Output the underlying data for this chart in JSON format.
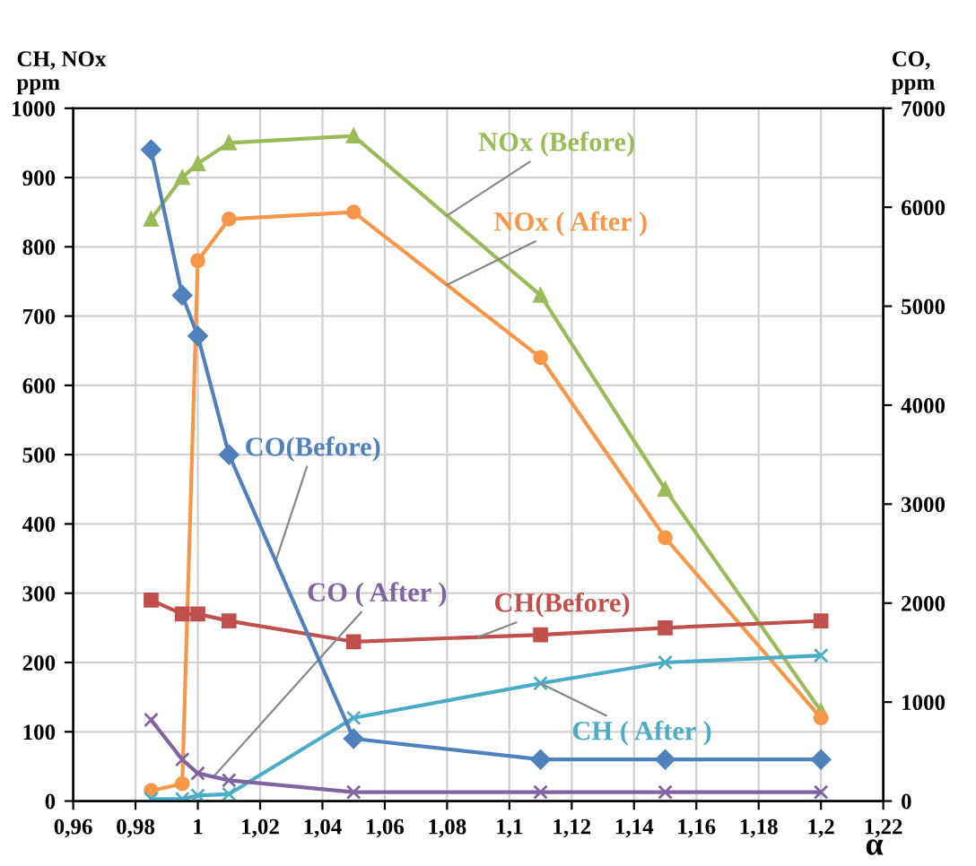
{
  "chart_data": {
    "type": "line",
    "ylabel": "CH, NOx\nppm",
    "y2label": "CO,\nppm",
    "xlabel": "α",
    "x": [
      0.985,
      0.995,
      1.0,
      1.01,
      1.05,
      1.11,
      1.15,
      1.2
    ],
    "series": [
      {
        "name": "NOx (Before)",
        "color": "#9bbb59",
        "marker": "triangle",
        "values": [
          840,
          900,
          920,
          950,
          960,
          730,
          450,
          130
        ]
      },
      {
        "name": "NOx ( After )",
        "color": "#f79646",
        "marker": "circle",
        "values": [
          15,
          25,
          780,
          840,
          850,
          640,
          380,
          120
        ]
      },
      {
        "name": "CO(Before)",
        "color": "#4f81bd",
        "marker": "diamond",
        "axis": "y2",
        "values": [
          6580,
          5110,
          4700,
          3500,
          630,
          420,
          420,
          420
        ]
      },
      {
        "name": "CO ( After )",
        "color": "#8064a2",
        "marker": "cross",
        "axis": "y2",
        "values": [
          820,
          420,
          280,
          210,
          90,
          90,
          90,
          90
        ]
      },
      {
        "name": "CH(Before)",
        "color": "#c0504d",
        "marker": "square",
        "values": [
          290,
          270,
          270,
          260,
          230,
          240,
          250,
          260
        ]
      },
      {
        "name": "CH ( After )",
        "color": "#4bacc6",
        "marker": "cross",
        "values": [
          3,
          3,
          8,
          10,
          120,
          170,
          200,
          210
        ]
      }
    ],
    "xlim": [
      0.96,
      1.22
    ],
    "xticks": [
      {
        "value": 0.96,
        "label": "0,96"
      },
      {
        "value": 0.98,
        "label": "0,98"
      },
      {
        "value": 1.0,
        "label": "1"
      },
      {
        "value": 1.02,
        "label": "1,02"
      },
      {
        "value": 1.04,
        "label": "1,04"
      },
      {
        "value": 1.06,
        "label": "1,06"
      },
      {
        "value": 1.08,
        "label": "1,08"
      },
      {
        "value": 1.1,
        "label": "1,1"
      },
      {
        "value": 1.12,
        "label": "1,12"
      },
      {
        "value": 1.14,
        "label": "1,14"
      },
      {
        "value": 1.16,
        "label": "1,16"
      },
      {
        "value": 1.18,
        "label": "1,18"
      },
      {
        "value": 1.2,
        "label": "1,2"
      },
      {
        "value": 1.22,
        "label": "1,22"
      }
    ],
    "ylim": [
      0,
      1000
    ],
    "yticks": [
      0,
      100,
      200,
      300,
      400,
      500,
      600,
      700,
      800,
      900,
      1000
    ],
    "y2lim": [
      0,
      7000
    ],
    "y2ticks": [
      0,
      1000,
      2000,
      3000,
      4000,
      5000,
      6000,
      7000
    ],
    "grid": true,
    "legend": false
  }
}
